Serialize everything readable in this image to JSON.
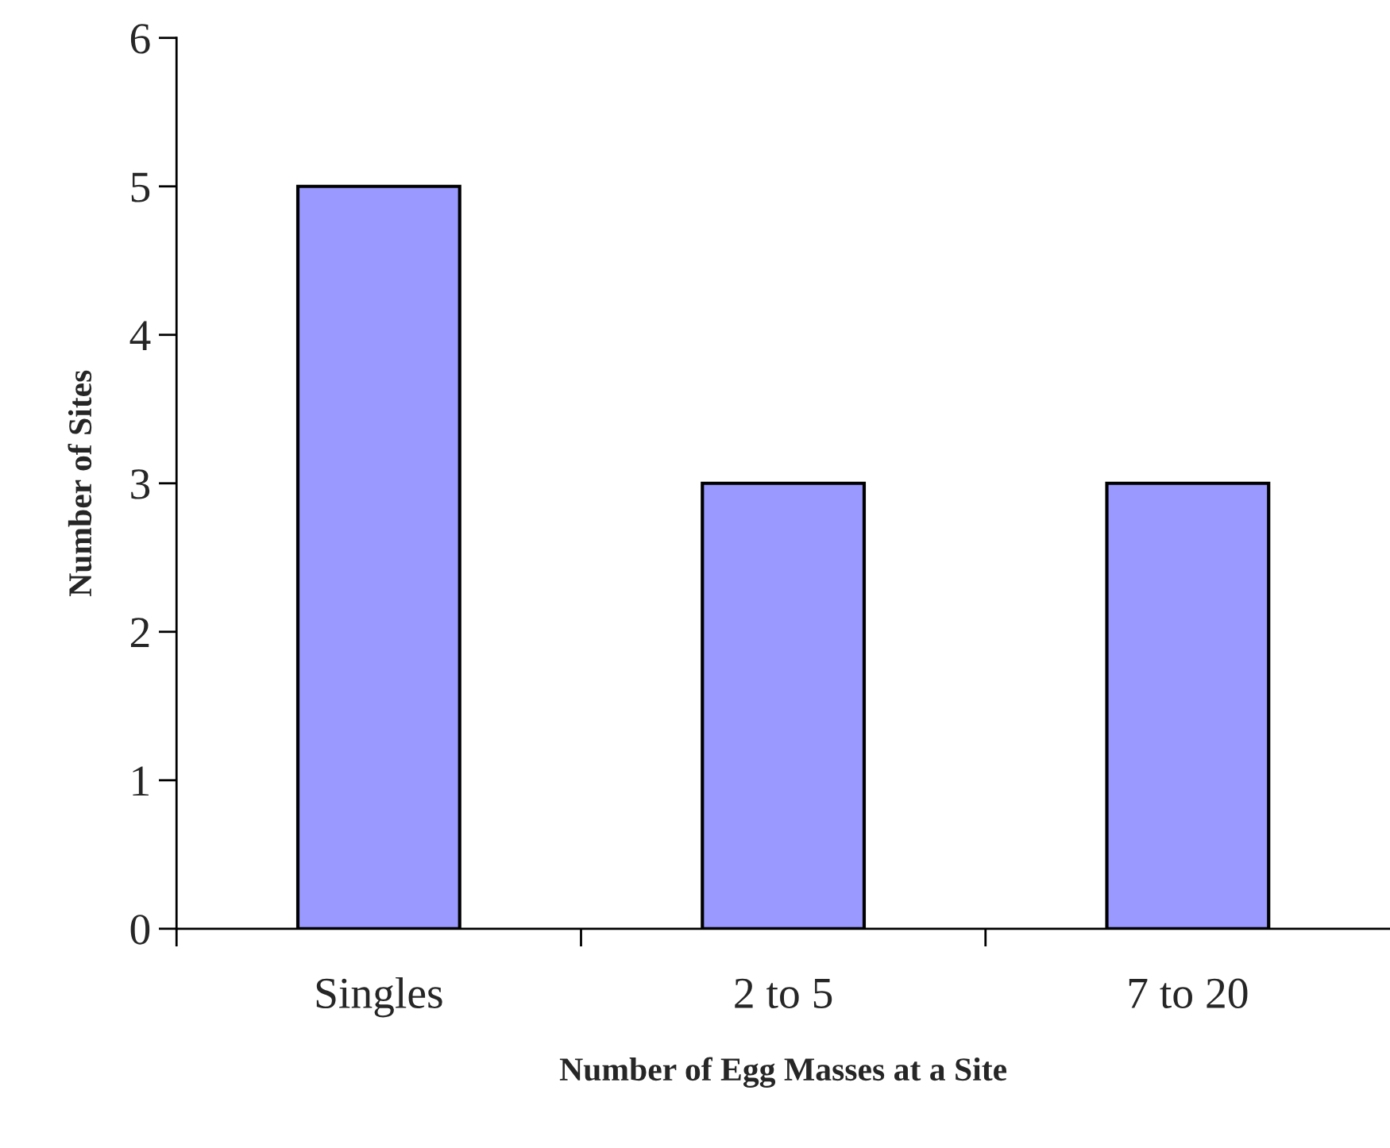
{
  "chart_data": {
    "type": "bar",
    "xlabel": "Number of Egg Masses at a Site",
    "ylabel": "Number of Sites",
    "categories": [
      "Singles",
      "2 to 5",
      "7 to 20"
    ],
    "values": [
      5,
      3,
      3
    ],
    "color": "#9999ff",
    "ylim": [
      0,
      6
    ],
    "yticks": [
      0,
      1,
      2,
      3,
      4,
      5,
      6
    ]
  }
}
